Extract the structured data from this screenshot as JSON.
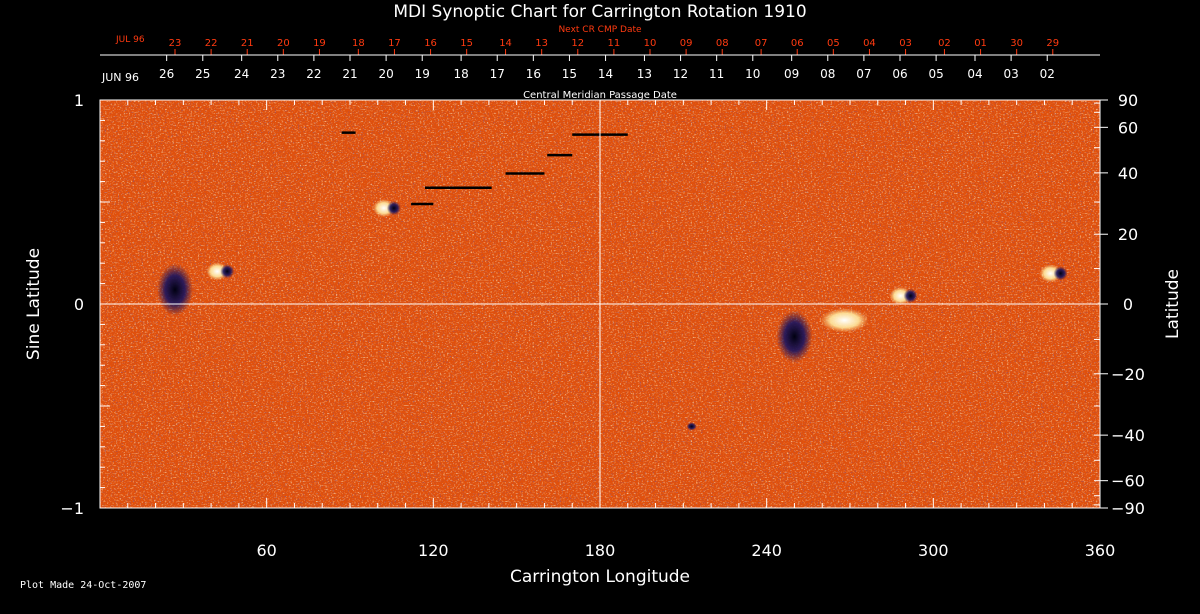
{
  "colors": {
    "background": "#000000",
    "axis": "#ffffff",
    "next_cr": "#ff3a10",
    "field_base": "#e8540e",
    "field_light": "#ffd080",
    "field_dark": "#1a1460"
  },
  "footer": {
    "plot_made": "Plot Made 24-Oct-2007"
  },
  "chart_data": {
    "type": "heatmap",
    "title": "MDI Synoptic Chart for Carrington Rotation 1910",
    "xlabel": "Carrington Longitude",
    "ylabel_left": "Sine Latitude",
    "ylabel_right": "Latitude",
    "xlim": [
      0,
      360
    ],
    "ylim": [
      -1,
      1
    ],
    "x_ticks": [
      60,
      120,
      180,
      240,
      300,
      360
    ],
    "y_left_ticks": [
      {
        "value": 1,
        "label": "1"
      },
      {
        "value": 0,
        "label": "0"
      },
      {
        "value": -1,
        "label": "−1"
      }
    ],
    "y_right_ticks": [
      {
        "deg": 90,
        "label": "90"
      },
      {
        "deg": 60,
        "label": "60"
      },
      {
        "deg": 40,
        "label": "40"
      },
      {
        "deg": 20,
        "label": "20"
      },
      {
        "deg": 0,
        "label": "0"
      },
      {
        "deg": -20,
        "label": "−20"
      },
      {
        "deg": -40,
        "label": "−40"
      },
      {
        "deg": -60,
        "label": "−60"
      },
      {
        "deg": -90,
        "label": "−90"
      }
    ],
    "cmp_axis": {
      "title": "Central Meridian Passage Date",
      "month_label": "JUN 96",
      "days": [
        "26",
        "25",
        "24",
        "23",
        "22",
        "21",
        "20",
        "19",
        "18",
        "17",
        "16",
        "15",
        "14",
        "13",
        "12",
        "11",
        "10",
        "09",
        "08",
        "07",
        "06",
        "05",
        "04",
        "03",
        "02"
      ],
      "day_longitudes": [
        24,
        37,
        51,
        64,
        77,
        90,
        103,
        116,
        130,
        143,
        156,
        169,
        182,
        196,
        209,
        222,
        235,
        249,
        262,
        275,
        288,
        301,
        315,
        328,
        341
      ]
    },
    "next_cr_axis": {
      "title": "Next CR CMP Date",
      "month_label": "JUL 96",
      "days": [
        "23",
        "22",
        "21",
        "20",
        "19",
        "18",
        "17",
        "16",
        "15",
        "14",
        "13",
        "12",
        "11",
        "10",
        "09",
        "08",
        "07",
        "06",
        "05",
        "04",
        "03",
        "02",
        "01",
        "30",
        "29"
      ],
      "day_longitudes": [
        27,
        40,
        53,
        66,
        79,
        93,
        106,
        119,
        132,
        146,
        159,
        172,
        185,
        198,
        211,
        224,
        238,
        251,
        264,
        277,
        290,
        304,
        317,
        330,
        343
      ]
    },
    "features": [
      {
        "name": "active-region-a",
        "lon": 44,
        "sinlat": 0.16,
        "kind": "bipole"
      },
      {
        "name": "active-region-b",
        "lon": 27,
        "sinlat": 0.07,
        "kind": "dark"
      },
      {
        "name": "active-region-c",
        "lon": 104,
        "sinlat": 0.47,
        "kind": "bipole"
      },
      {
        "name": "active-region-d",
        "lon": 250,
        "sinlat": -0.16,
        "kind": "dark"
      },
      {
        "name": "active-region-e",
        "lon": 268,
        "sinlat": -0.08,
        "kind": "bright"
      },
      {
        "name": "active-region-f",
        "lon": 290,
        "sinlat": 0.04,
        "kind": "bipole"
      },
      {
        "name": "active-region-g",
        "lon": 344,
        "sinlat": 0.15,
        "kind": "bipole"
      },
      {
        "name": "spot-h",
        "lon": 213,
        "sinlat": -0.6,
        "kind": "dark"
      }
    ],
    "data_gaps": [
      {
        "lon_start": 170,
        "lon_end": 190,
        "sinlat": 0.83
      },
      {
        "lon_start": 161,
        "lon_end": 170,
        "sinlat": 0.73
      },
      {
        "lon_start": 146,
        "lon_end": 160,
        "sinlat": 0.64
      },
      {
        "lon_start": 117,
        "lon_end": 141,
        "sinlat": 0.57
      },
      {
        "lon_start": 87,
        "lon_end": 92,
        "sinlat": 0.84
      },
      {
        "lon_start": 112,
        "lon_end": 120,
        "sinlat": 0.49
      }
    ]
  }
}
